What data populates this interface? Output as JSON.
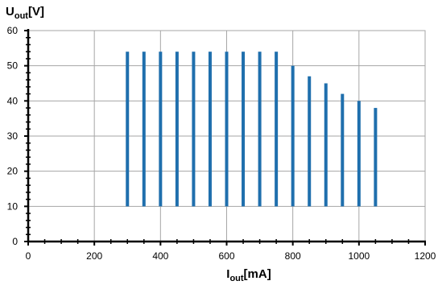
{
  "chart_data": {
    "type": "bar",
    "subtype": "floating-range",
    "x": [
      300,
      350,
      400,
      450,
      500,
      550,
      600,
      650,
      700,
      750,
      800,
      850,
      900,
      950,
      1000,
      1050
    ],
    "y_low": [
      10,
      10,
      10,
      10,
      10,
      10,
      10,
      10,
      10,
      10,
      10,
      10,
      10,
      10,
      10,
      10
    ],
    "y_high": [
      54,
      54,
      54,
      54,
      54,
      54,
      54,
      54,
      54,
      54,
      50,
      47,
      45,
      42,
      40,
      38
    ],
    "xlabel": {
      "main": "I",
      "sub": "out",
      "suffix": "[mA]"
    },
    "ylabel": {
      "main": "U",
      "sub": "out",
      "suffix": "[V]"
    },
    "xlim": [
      0,
      1200
    ],
    "ylim": [
      0,
      60
    ],
    "x_ticks": [
      "0",
      "200",
      "400",
      "600",
      "800",
      "1000",
      "1200"
    ],
    "y_ticks": [
      "0",
      "10",
      "20",
      "30",
      "40",
      "50",
      "60"
    ],
    "grid": true,
    "legend": "none",
    "bar_color": "#1f6fad",
    "grid_color": "#a6a6a6"
  }
}
